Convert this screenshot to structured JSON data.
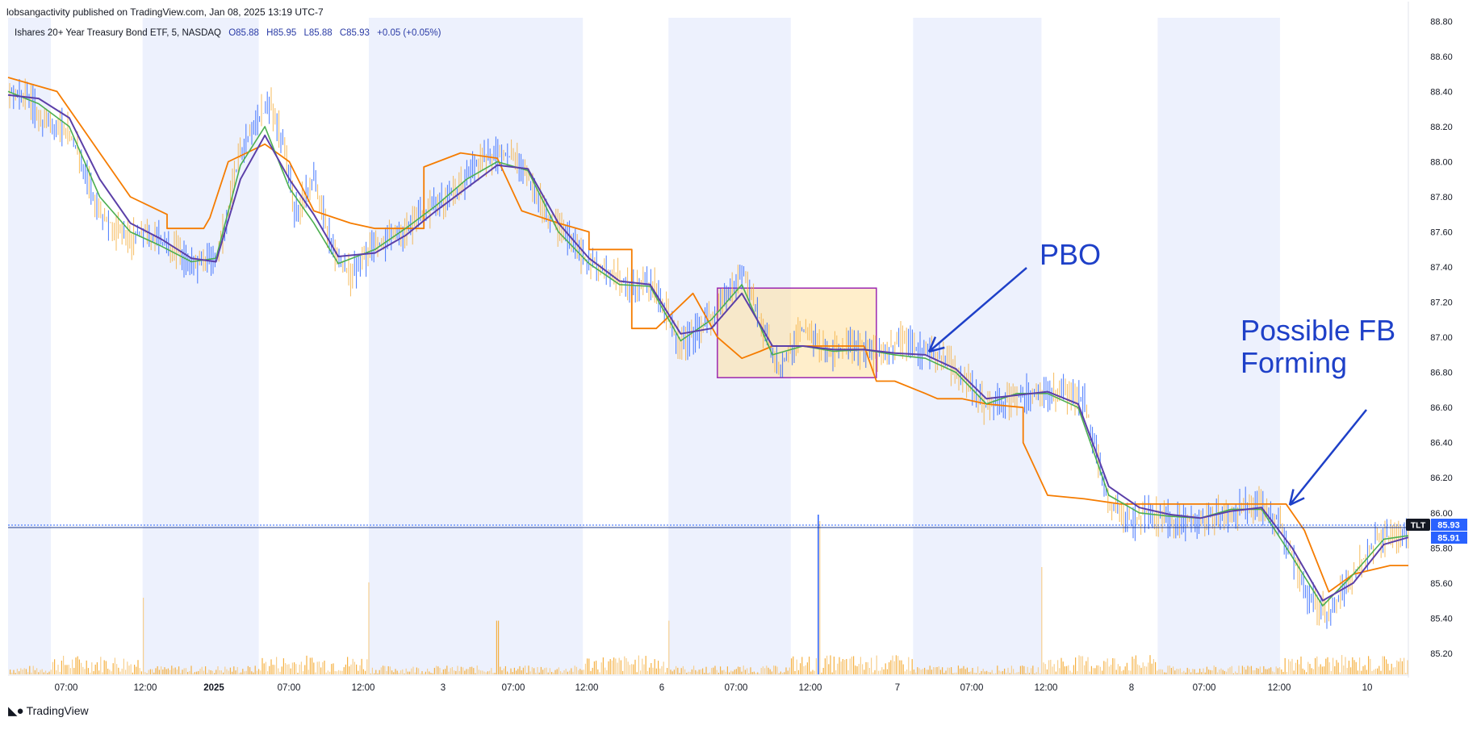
{
  "header": {
    "published": "lobsangactivity published on TradingView.com, Jan 08, 2025 13:19 UTC-7"
  },
  "legend": {
    "symbol": "Ishares 20+ Year Treasury Bond ETF, 5, NASDAQ",
    "open": "O85.88",
    "high": "H85.95",
    "low": "L85.88",
    "close": "C85.93",
    "change": "+0.05 (+0.05%)"
  },
  "brand": {
    "name": "TradingView"
  },
  "colors": {
    "session_shade": "#edf1fd",
    "price": "#2962ff",
    "ema_fast": "#4caf50",
    "ema_mid": "#5b3fa8",
    "trail": "#f57c00",
    "volume": "#f5b041",
    "annotation": "#1e40c8",
    "box_fill": "#ffe0a0",
    "box_border": "#9c27b0"
  },
  "chart_data": {
    "type": "line",
    "title": "",
    "ylim": [
      85.08,
      88.82
    ],
    "y_ticks": [
      88.8,
      88.6,
      88.4,
      88.2,
      88.0,
      87.8,
      87.6,
      87.4,
      87.2,
      87.0,
      86.8,
      86.6,
      86.4,
      86.2,
      86.0,
      85.8,
      85.6,
      85.4,
      85.2
    ],
    "x_labels": [
      "07:00",
      "12:00",
      "2025",
      "07:00",
      "12:00",
      "3",
      "07:00",
      "12:00",
      "6",
      "07:00",
      "12:00",
      "7",
      "07:00",
      "12:00",
      "8",
      "07:00",
      "12:00",
      "10"
    ],
    "x_label_bold": [
      false,
      false,
      true,
      false,
      false,
      false,
      false,
      false,
      false,
      false,
      false,
      false,
      false,
      false,
      false,
      false,
      false,
      false
    ],
    "sessions_x": [
      [
        0,
        0.7
      ],
      [
        2.2,
        4.1
      ],
      [
        5.9,
        9.4
      ],
      [
        10.8,
        12.8
      ],
      [
        14.8,
        16.9
      ],
      [
        18.8,
        20.8
      ]
    ],
    "x_range": [
      0,
      22.9
    ],
    "series": [
      {
        "key": "price",
        "x": [
          0,
          0.3,
          0.6,
          1.0,
          1.2,
          1.5,
          1.8,
          2.0,
          2.2,
          2.5,
          2.8,
          3.0,
          3.4,
          3.8,
          4.1,
          4.3,
          4.5,
          4.7,
          5.0,
          5.3,
          5.6,
          6.0,
          6.4,
          6.8,
          7.2,
          7.5,
          7.7,
          8.0,
          8.4,
          8.8,
          9.2,
          9.4,
          9.8,
          10.2,
          10.4,
          10.6,
          11.0,
          11.3,
          11.6,
          12.0,
          12.4,
          12.6,
          13.0,
          13.4,
          13.8,
          14.2,
          14.6,
          15.0,
          15.3,
          15.6,
          16.0,
          16.4,
          16.8,
          17.2,
          17.6,
          18.0,
          18.4,
          18.6,
          18.8,
          19.2,
          19.6,
          20.0,
          20.4,
          20.8,
          21.0,
          21.3,
          21.6,
          22.0,
          22.4,
          22.9
        ],
        "values": [
          88.42,
          88.38,
          88.22,
          88.18,
          88.0,
          87.72,
          87.6,
          87.55,
          87.62,
          87.55,
          87.48,
          87.42,
          87.42,
          88.05,
          88.25,
          88.32,
          88.1,
          87.7,
          87.9,
          87.52,
          87.35,
          87.52,
          87.58,
          87.7,
          87.8,
          87.9,
          88.0,
          88.05,
          88.0,
          87.7,
          87.55,
          87.45,
          87.38,
          87.28,
          87.3,
          87.28,
          86.95,
          87.05,
          87.15,
          87.38,
          87.0,
          86.82,
          87.05,
          86.9,
          86.95,
          86.9,
          86.98,
          86.92,
          86.88,
          86.78,
          86.6,
          86.65,
          86.7,
          86.68,
          86.65,
          86.05,
          85.95,
          86.0,
          85.98,
          85.95,
          85.98,
          86.0,
          86.05,
          85.95,
          85.75,
          85.5,
          85.42,
          85.65,
          85.85,
          85.9
        ]
      },
      {
        "key": "ema_fast",
        "x": [
          0,
          0.5,
          1.0,
          1.5,
          2.0,
          2.5,
          3.0,
          3.4,
          3.8,
          4.2,
          4.6,
          5.0,
          5.4,
          6.0,
          6.5,
          7.0,
          7.5,
          8.0,
          8.5,
          9.0,
          9.5,
          10.0,
          10.5,
          11.0,
          11.5,
          12.0,
          12.5,
          13.0,
          13.5,
          14.0,
          14.5,
          15.0,
          15.5,
          16.0,
          16.5,
          17.0,
          17.5,
          18.0,
          18.5,
          19.0,
          19.5,
          20.0,
          20.5,
          21.0,
          21.5,
          22.0,
          22.5,
          22.9
        ],
        "values": [
          88.4,
          88.33,
          88.2,
          87.8,
          87.6,
          87.52,
          87.43,
          87.45,
          87.98,
          88.2,
          87.85,
          87.65,
          87.42,
          87.5,
          87.62,
          87.75,
          87.9,
          88.0,
          87.95,
          87.6,
          87.42,
          87.3,
          87.29,
          86.98,
          87.1,
          87.3,
          86.9,
          86.95,
          86.92,
          86.93,
          86.9,
          86.88,
          86.8,
          86.62,
          86.68,
          86.68,
          86.6,
          86.1,
          86.0,
          85.98,
          85.97,
          86.02,
          86.02,
          85.75,
          85.47,
          85.65,
          85.85,
          85.87
        ]
      },
      {
        "key": "ema_mid",
        "x": [
          0,
          0.5,
          1.0,
          1.5,
          2.0,
          2.5,
          3.0,
          3.4,
          3.8,
          4.2,
          4.6,
          5.0,
          5.4,
          6.0,
          6.5,
          7.0,
          7.5,
          8.0,
          8.5,
          9.0,
          9.5,
          10.0,
          10.5,
          11.0,
          11.5,
          12.0,
          12.5,
          13.0,
          13.5,
          14.0,
          14.5,
          15.0,
          15.5,
          16.0,
          16.5,
          17.0,
          17.5,
          18.0,
          18.5,
          19.0,
          19.5,
          20.0,
          20.5,
          21.0,
          21.5,
          22.0,
          22.5,
          22.9
        ],
        "values": [
          88.38,
          88.36,
          88.25,
          87.9,
          87.65,
          87.56,
          87.45,
          87.43,
          87.9,
          88.15,
          87.9,
          87.7,
          87.46,
          87.48,
          87.58,
          87.72,
          87.85,
          87.98,
          87.96,
          87.65,
          87.45,
          87.32,
          87.3,
          87.02,
          87.05,
          87.25,
          86.95,
          86.95,
          86.93,
          86.93,
          86.91,
          86.9,
          86.82,
          86.65,
          86.67,
          86.69,
          86.62,
          86.15,
          86.03,
          85.99,
          85.97,
          86.01,
          86.03,
          85.8,
          85.5,
          85.6,
          85.82,
          85.86
        ]
      },
      {
        "key": "trail",
        "x": [
          0,
          0.8,
          1.2,
          1.6,
          2.0,
          2.6,
          2.6,
          3.2,
          3.3,
          3.6,
          4.2,
          4.6,
          5.0,
          5.6,
          6.0,
          6.8,
          6.8,
          7.4,
          8.0,
          8.4,
          9.0,
          9.5,
          9.5,
          10.2,
          10.2,
          10.6,
          11.2,
          11.6,
          12.0,
          12.3,
          12.5,
          12.9,
          13.2,
          13.8,
          14.0,
          14.2,
          14.5,
          15.0,
          15.2,
          15.6,
          16.0,
          16.6,
          16.6,
          17.0,
          17.6,
          18.2,
          18.8,
          19.6,
          20.4,
          20.9,
          21.2,
          21.6,
          22.0,
          22.6,
          22.9
        ],
        "values": [
          88.48,
          88.4,
          88.2,
          88.0,
          87.8,
          87.7,
          87.62,
          87.62,
          87.68,
          88.0,
          88.1,
          88.0,
          87.72,
          87.65,
          87.62,
          87.62,
          87.97,
          88.05,
          88.02,
          87.72,
          87.65,
          87.6,
          87.5,
          87.5,
          87.05,
          87.05,
          87.25,
          87.0,
          86.88,
          86.92,
          86.95,
          86.95,
          86.95,
          86.95,
          86.95,
          86.75,
          86.75,
          86.68,
          86.65,
          86.65,
          86.62,
          86.6,
          86.4,
          86.1,
          86.08,
          86.05,
          86.05,
          86.05,
          86.05,
          86.05,
          85.9,
          85.55,
          85.65,
          85.7,
          85.7
        ]
      }
    ],
    "volume_spikes": [
      {
        "x": 2.2,
        "v": 0.5
      },
      {
        "x": 5.9,
        "v": 0.6
      },
      {
        "x": 8.0,
        "v": 0.35
      },
      {
        "x": 10.8,
        "v": 0.35
      },
      {
        "x": 13.25,
        "v": 1.0
      },
      {
        "x": 16.9,
        "v": 0.7
      }
    ],
    "current_price": {
      "label": "TLT",
      "value": "85.93",
      "value2": "85.91",
      "y": 85.93
    },
    "consolidation_box": {
      "x0": 11.6,
      "x1": 14.2,
      "y0": 86.77,
      "y1": 87.28
    },
    "annotations": [
      {
        "text": "PBO"
      },
      {
        "text": "Possible FB"
      },
      {
        "text": "Forming"
      }
    ]
  }
}
